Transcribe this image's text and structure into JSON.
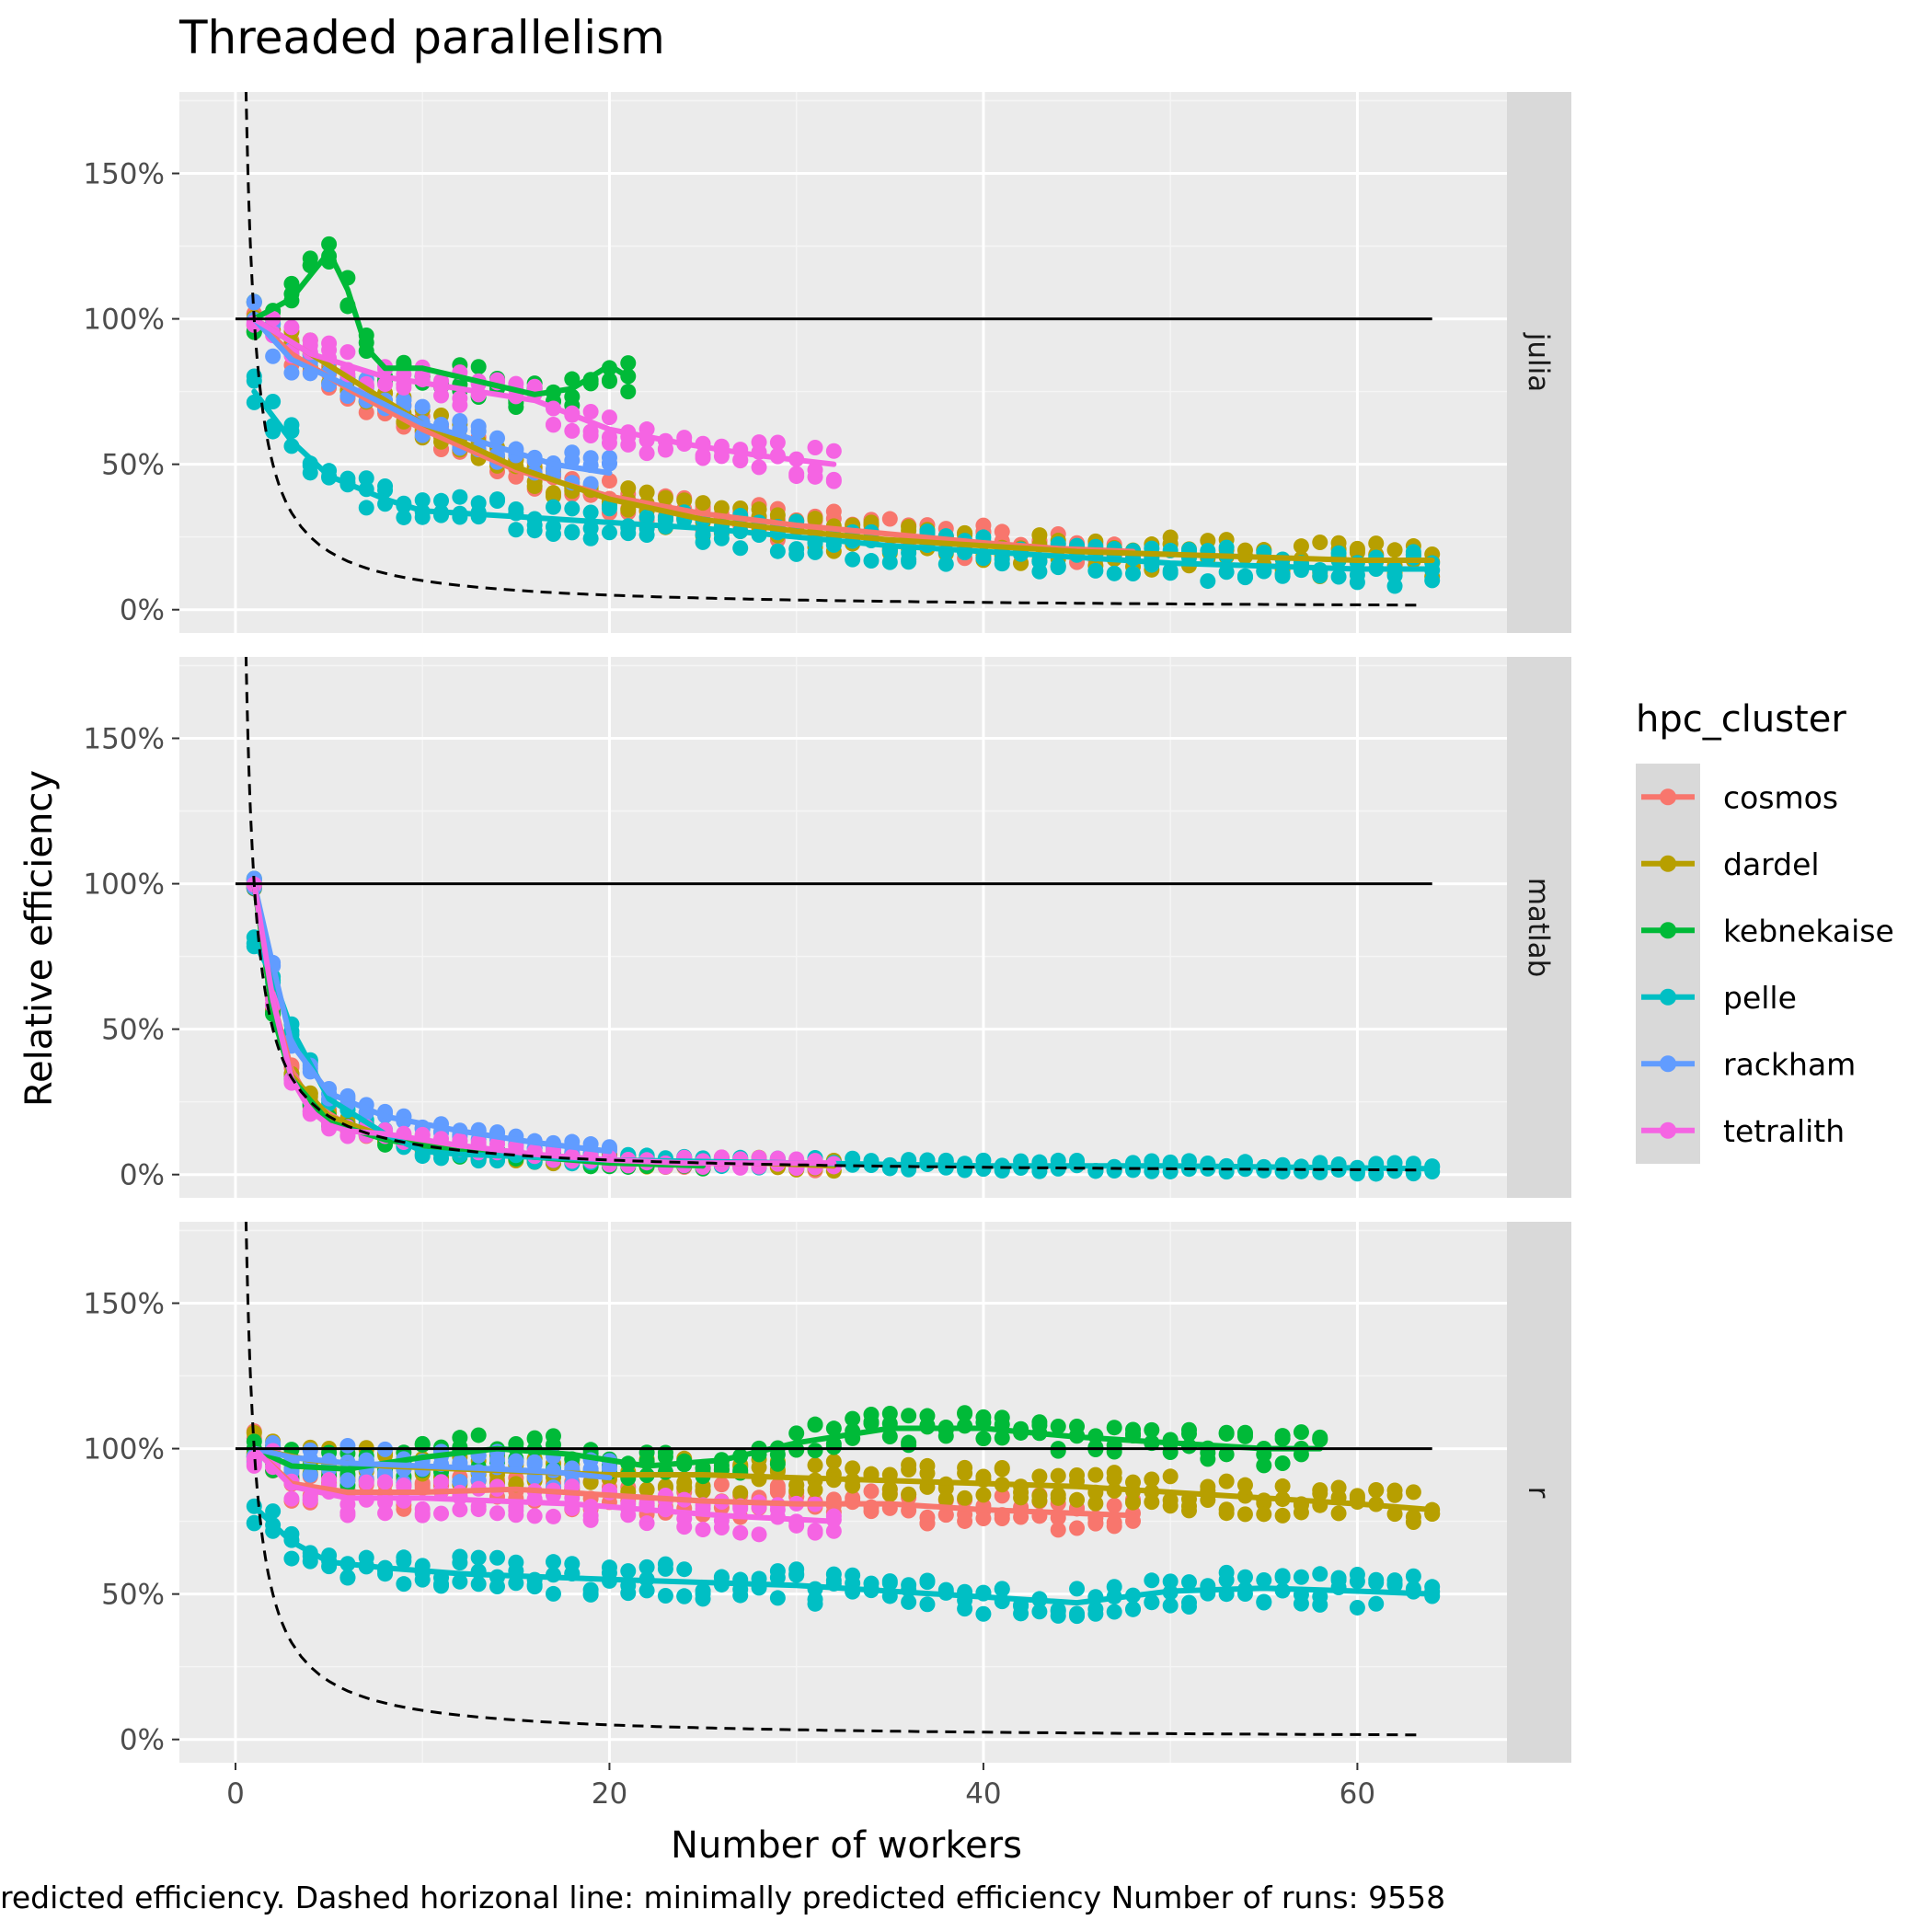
{
  "chart_data": {
    "type": "scatter",
    "title": "Threaded parallelism",
    "xlabel": "Number of workers",
    "ylabel": "Relative efficiency",
    "caption": "redicted efficiency. Dashed horizonal line: minimally predicted efficiency Number of runs: 9558",
    "xlim": [
      -3,
      68
    ],
    "ylim": [
      -0.08,
      1.78
    ],
    "x_ticks": [
      0,
      20,
      40,
      60
    ],
    "x_tick_labels": [
      "0",
      "20",
      "40",
      "60"
    ],
    "y_ticks": [
      0,
      0.5,
      1,
      1.5
    ],
    "y_tick_labels": [
      "0%",
      "50%",
      "100%",
      "150%"
    ],
    "reference_line": {
      "y": 1,
      "x_from": 0,
      "x_to": 64
    },
    "dashed_curve": "y = 1 / workers (minimal predicted efficiency)",
    "legend": {
      "title": "hpc_cluster",
      "items": [
        {
          "label": "cosmos",
          "color": "#F8766D"
        },
        {
          "label": "dardel",
          "color": "#B79F00"
        },
        {
          "label": "kebnekaise",
          "color": "#00BA38"
        },
        {
          "label": "pelle",
          "color": "#00BFC4"
        },
        {
          "label": "rackham",
          "color": "#619CFF"
        },
        {
          "label": "tetralith",
          "color": "#F564E3"
        }
      ]
    },
    "panels": [
      {
        "strip": "julia",
        "series": [
          {
            "name": "cosmos",
            "max_workers": 48,
            "trend": [
              [
                1,
                1.0
              ],
              [
                3,
                0.88
              ],
              [
                6,
                0.76
              ],
              [
                10,
                0.62
              ],
              [
                15,
                0.48
              ],
              [
                20,
                0.39
              ],
              [
                25,
                0.33
              ],
              [
                30,
                0.29
              ],
              [
                35,
                0.26
              ],
              [
                40,
                0.23
              ],
              [
                44,
                0.21
              ],
              [
                48,
                0.2
              ]
            ]
          },
          {
            "name": "dardel",
            "max_workers": 64,
            "trend": [
              [
                1,
                1.0
              ],
              [
                3,
                0.92
              ],
              [
                6,
                0.8
              ],
              [
                10,
                0.64
              ],
              [
                15,
                0.49
              ],
              [
                20,
                0.38
              ],
              [
                25,
                0.31
              ],
              [
                30,
                0.27
              ],
              [
                35,
                0.24
              ],
              [
                40,
                0.22
              ],
              [
                45,
                0.2
              ],
              [
                50,
                0.19
              ],
              [
                55,
                0.18
              ],
              [
                60,
                0.17
              ],
              [
                64,
                0.17
              ]
            ]
          },
          {
            "name": "kebnekaise",
            "max_workers": 21,
            "trend": [
              [
                1,
                1.0
              ],
              [
                3,
                1.07
              ],
              [
                5,
                1.23
              ],
              [
                6,
                1.1
              ],
              [
                7,
                0.9
              ],
              [
                8,
                0.83
              ],
              [
                10,
                0.83
              ],
              [
                12,
                0.8
              ],
              [
                14,
                0.77
              ],
              [
                16,
                0.74
              ],
              [
                18,
                0.76
              ],
              [
                20,
                0.84
              ],
              [
                21,
                0.8
              ]
            ]
          },
          {
            "name": "pelle",
            "max_workers": 64,
            "trend": [
              [
                1,
                0.75
              ],
              [
                3,
                0.58
              ],
              [
                5,
                0.46
              ],
              [
                8,
                0.38
              ],
              [
                10,
                0.34
              ],
              [
                15,
                0.32
              ],
              [
                20,
                0.3
              ],
              [
                25,
                0.28
              ],
              [
                30,
                0.25
              ],
              [
                35,
                0.22
              ],
              [
                40,
                0.2
              ],
              [
                45,
                0.18
              ],
              [
                50,
                0.16
              ],
              [
                55,
                0.15
              ],
              [
                60,
                0.14
              ],
              [
                64,
                0.14
              ]
            ]
          },
          {
            "name": "rackham",
            "max_workers": 20,
            "trend": [
              [
                1,
                1.0
              ],
              [
                3,
                0.86
              ],
              [
                6,
                0.77
              ],
              [
                10,
                0.64
              ],
              [
                14,
                0.56
              ],
              [
                17,
                0.5
              ],
              [
                20,
                0.47
              ]
            ]
          },
          {
            "name": "tetralith",
            "max_workers": 32,
            "trend": [
              [
                1,
                1.0
              ],
              [
                4,
                0.88
              ],
              [
                8,
                0.8
              ],
              [
                12,
                0.76
              ],
              [
                16,
                0.72
              ],
              [
                20,
                0.62
              ],
              [
                24,
                0.57
              ],
              [
                28,
                0.53
              ],
              [
                32,
                0.5
              ]
            ]
          }
        ]
      },
      {
        "strip": "matlab",
        "series": [
          {
            "name": "cosmos",
            "max_workers": 32,
            "trend": [
              [
                1,
                1.0
              ],
              [
                2,
                0.6
              ],
              [
                3,
                0.36
              ],
              [
                4,
                0.25
              ],
              [
                6,
                0.17
              ],
              [
                8,
                0.12
              ],
              [
                12,
                0.08
              ],
              [
                16,
                0.06
              ],
              [
                20,
                0.05
              ],
              [
                24,
                0.04
              ],
              [
                28,
                0.04
              ],
              [
                32,
                0.03
              ]
            ]
          },
          {
            "name": "dardel",
            "max_workers": 32,
            "trend": [
              [
                1,
                1.0
              ],
              [
                2,
                0.55
              ],
              [
                3,
                0.34
              ],
              [
                5,
                0.2
              ],
              [
                8,
                0.13
              ],
              [
                12,
                0.08
              ],
              [
                16,
                0.06
              ],
              [
                20,
                0.05
              ],
              [
                24,
                0.04
              ],
              [
                28,
                0.04
              ],
              [
                32,
                0.03
              ]
            ]
          },
          {
            "name": "kebnekaise",
            "max_workers": 25,
            "trend": [
              [
                1,
                1.0
              ],
              [
                2,
                0.55
              ],
              [
                3,
                0.33
              ],
              [
                5,
                0.18
              ],
              [
                8,
                0.12
              ],
              [
                12,
                0.08
              ],
              [
                16,
                0.06
              ],
              [
                20,
                0.04
              ],
              [
                25,
                0.03
              ]
            ]
          },
          {
            "name": "pelle",
            "max_workers": 64,
            "trend": [
              [
                1,
                0.8
              ],
              [
                2,
                0.68
              ],
              [
                3,
                0.5
              ],
              [
                5,
                0.26
              ],
              [
                8,
                0.14
              ],
              [
                10,
                0.08
              ],
              [
                12,
                0.07
              ],
              [
                16,
                0.06
              ],
              [
                20,
                0.05
              ],
              [
                30,
                0.04
              ],
              [
                40,
                0.03
              ],
              [
                50,
                0.03
              ],
              [
                64,
                0.02
              ]
            ]
          },
          {
            "name": "rackham",
            "max_workers": 20,
            "trend": [
              [
                1,
                1.0
              ],
              [
                2,
                0.72
              ],
              [
                3,
                0.45
              ],
              [
                5,
                0.28
              ],
              [
                8,
                0.2
              ],
              [
                12,
                0.15
              ],
              [
                16,
                0.11
              ],
              [
                20,
                0.08
              ]
            ]
          },
          {
            "name": "tetralith",
            "max_workers": 32,
            "trend": [
              [
                1,
                1.0
              ],
              [
                2,
                0.6
              ],
              [
                3,
                0.33
              ],
              [
                4,
                0.22
              ],
              [
                5,
                0.17
              ],
              [
                6,
                0.15
              ],
              [
                8,
                0.14
              ],
              [
                12,
                0.1
              ],
              [
                16,
                0.07
              ],
              [
                20,
                0.05
              ],
              [
                24,
                0.04
              ],
              [
                32,
                0.04
              ]
            ]
          }
        ]
      },
      {
        "strip": "r",
        "series": [
          {
            "name": "cosmos",
            "max_workers": 48,
            "trend": [
              [
                1,
                1.0
              ],
              [
                3,
                0.88
              ],
              [
                6,
                0.85
              ],
              [
                10,
                0.85
              ],
              [
                15,
                0.86
              ],
              [
                20,
                0.84
              ],
              [
                25,
                0.82
              ],
              [
                30,
                0.81
              ],
              [
                35,
                0.81
              ],
              [
                40,
                0.79
              ],
              [
                44,
                0.78
              ],
              [
                48,
                0.77
              ]
            ]
          },
          {
            "name": "dardel",
            "max_workers": 64,
            "trend": [
              [
                1,
                1.0
              ],
              [
                4,
                0.96
              ],
              [
                8,
                0.94
              ],
              [
                12,
                0.93
              ],
              [
                16,
                0.92
              ],
              [
                20,
                0.91
              ],
              [
                25,
                0.91
              ],
              [
                30,
                0.9
              ],
              [
                35,
                0.89
              ],
              [
                40,
                0.88
              ],
              [
                45,
                0.87
              ],
              [
                50,
                0.85
              ],
              [
                55,
                0.83
              ],
              [
                60,
                0.81
              ],
              [
                64,
                0.79
              ]
            ]
          },
          {
            "name": "kebnekaise",
            "max_workers": 58,
            "trend": [
              [
                1,
                1.0
              ],
              [
                3,
                0.94
              ],
              [
                6,
                0.93
              ],
              [
                10,
                0.97
              ],
              [
                14,
                1.0
              ],
              [
                18,
                0.98
              ],
              [
                22,
                0.94
              ],
              [
                26,
                0.96
              ],
              [
                30,
                1.02
              ],
              [
                35,
                1.07
              ],
              [
                40,
                1.07
              ],
              [
                45,
                1.04
              ],
              [
                50,
                1.02
              ],
              [
                55,
                1.0
              ],
              [
                58,
                1.0
              ]
            ]
          },
          {
            "name": "pelle",
            "max_workers": 64,
            "trend": [
              [
                1,
                0.8
              ],
              [
                3,
                0.68
              ],
              [
                5,
                0.61
              ],
              [
                8,
                0.59
              ],
              [
                12,
                0.57
              ],
              [
                16,
                0.56
              ],
              [
                20,
                0.55
              ],
              [
                25,
                0.54
              ],
              [
                30,
                0.53
              ],
              [
                35,
                0.51
              ],
              [
                40,
                0.49
              ],
              [
                45,
                0.47
              ],
              [
                50,
                0.51
              ],
              [
                55,
                0.52
              ],
              [
                60,
                0.51
              ],
              [
                64,
                0.5
              ]
            ]
          },
          {
            "name": "rackham",
            "max_workers": 20,
            "trend": [
              [
                1,
                1.0
              ],
              [
                3,
                0.97
              ],
              [
                6,
                0.95
              ],
              [
                10,
                0.94
              ],
              [
                14,
                0.93
              ],
              [
                17,
                0.92
              ],
              [
                20,
                0.9
              ]
            ]
          },
          {
            "name": "tetralith",
            "max_workers": 32,
            "trend": [
              [
                1,
                1.0
              ],
              [
                3,
                0.87
              ],
              [
                6,
                0.83
              ],
              [
                10,
                0.83
              ],
              [
                14,
                0.82
              ],
              [
                18,
                0.81
              ],
              [
                22,
                0.79
              ],
              [
                26,
                0.77
              ],
              [
                29,
                0.76
              ],
              [
                32,
                0.75
              ]
            ]
          }
        ]
      }
    ]
  }
}
